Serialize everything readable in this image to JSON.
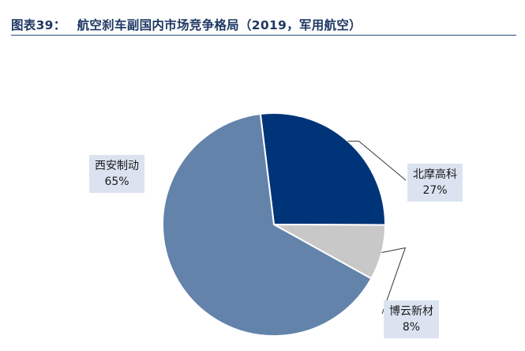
{
  "header": {
    "figure_no": "图表39：",
    "title": "航空刹车副国内市场竞争格局（2019，军用航空）"
  },
  "chart_data": {
    "type": "pie",
    "title": "航空刹车副国内市场竞争格局（2019，军用航空）",
    "slices": [
      {
        "name": "北摩高科",
        "value": 27,
        "label": "27%",
        "color": "#003478"
      },
      {
        "name": "博云新材",
        "value": 8,
        "label": "8%",
        "color": "#c8c8c8"
      },
      {
        "name": "西安制动",
        "value": 65,
        "label": "65%",
        "color": "#6383ab"
      }
    ],
    "start": "about 12 o'clock, clockwise",
    "legend": "none",
    "data_labels": "outside, in light-blue boxes with leader lines"
  }
}
